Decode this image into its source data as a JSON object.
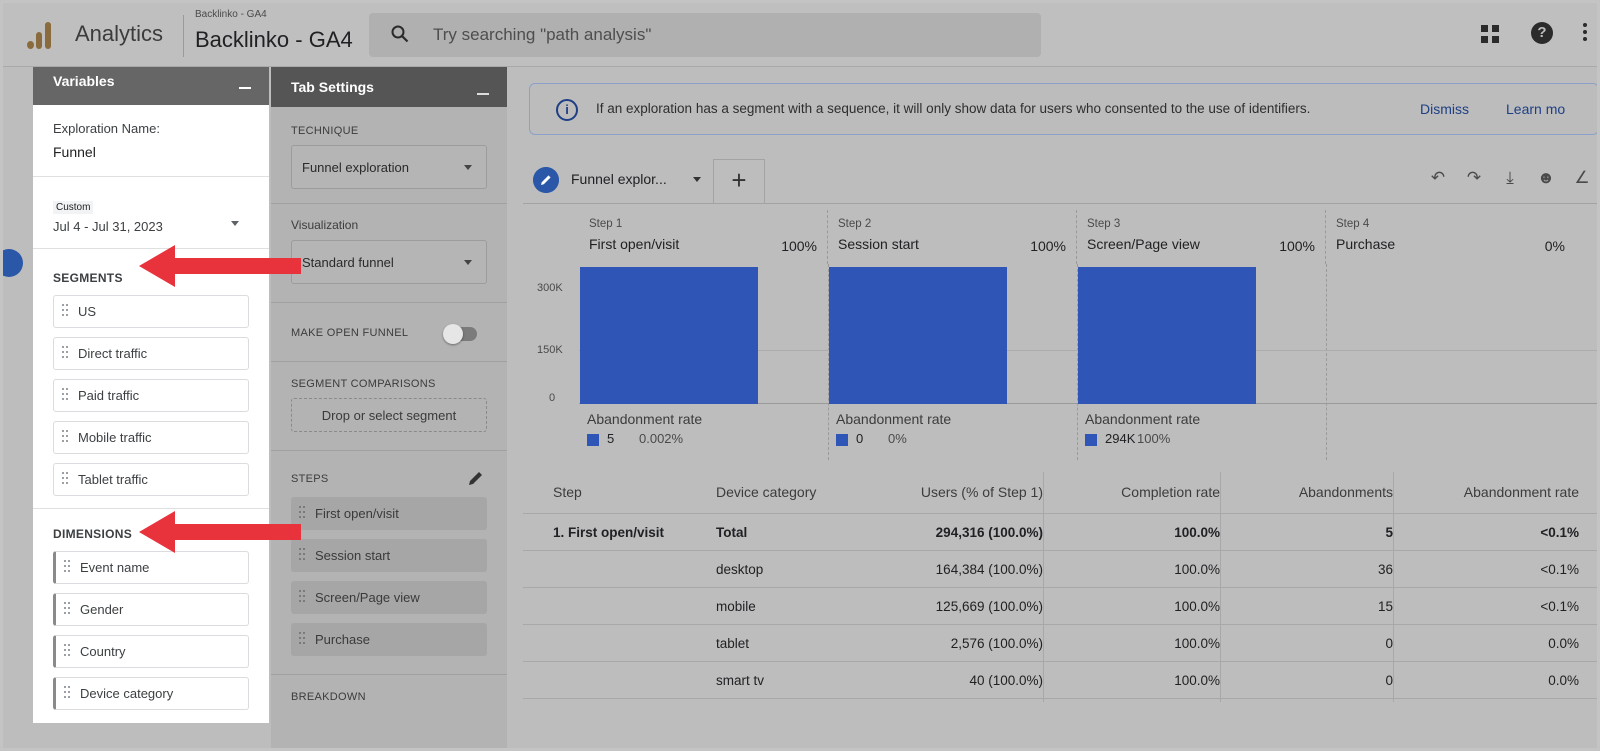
{
  "topbar": {
    "app_name": "Analytics",
    "account_small": "Backlinko - GA4",
    "account_name": "Backlinko - GA4",
    "search_placeholder": "Try searching \"path analysis\""
  },
  "variables_panel": {
    "title": "Variables",
    "exploration_label": "Exploration Name:",
    "exploration_name": "Funnel",
    "date_tag": "Custom",
    "date_range": "Jul 4 - Jul 31, 2023",
    "segments_title": "SEGMENTS",
    "segments": [
      "US",
      "Direct traffic",
      "Paid traffic",
      "Mobile traffic",
      "Tablet traffic"
    ],
    "dimensions_title": "DIMENSIONS",
    "dimensions": [
      "Event name",
      "Gender",
      "Country",
      "Device category"
    ]
  },
  "tab_settings": {
    "title": "Tab Settings",
    "technique_label": "TECHNIQUE",
    "technique_value": "Funnel exploration",
    "visualization_label": "Visualization",
    "visualization_value": "Standard funnel",
    "open_funnel_label": "MAKE OPEN FUNNEL",
    "segment_comparisons_label": "SEGMENT COMPARISONS",
    "segment_drop_text": "Drop or select segment",
    "steps_label": "STEPS",
    "steps": [
      "First open/visit",
      "Session start",
      "Screen/Page view",
      "Purchase"
    ],
    "breakdown_label": "BREAKDOWN"
  },
  "banner": {
    "message": "If an exploration has a segment with a sequence, it will only show data for users who consented to the use of identifiers.",
    "dismiss": "Dismiss",
    "learn_more": "Learn mo"
  },
  "tab": {
    "name": "Funnel explor...",
    "add": "+"
  },
  "chart_data": {
    "type": "bar",
    "categories": [
      "First open/visit",
      "Session start",
      "Screen/Page view",
      "Purchase"
    ],
    "step_labels": [
      "Step 1",
      "Step 2",
      "Step 3",
      "Step 4"
    ],
    "step_percents": [
      "100%",
      "100%",
      "100%",
      "0%"
    ],
    "values": [
      294316,
      294311,
      294311,
      0
    ],
    "yticks": [
      "300K",
      "150K",
      "0"
    ],
    "ylim": [
      0,
      300000
    ],
    "abandonment_label": "Abandonment rate",
    "abandonment": [
      {
        "count": "5",
        "rate": "0.002%"
      },
      {
        "count": "0",
        "rate": "0%"
      },
      {
        "count": "294K",
        "rate": "100%"
      }
    ],
    "colors": {
      "bar": "#2f55b7"
    }
  },
  "table": {
    "headers": [
      "Step",
      "Device category",
      "Users (% of Step 1)",
      "Completion rate",
      "Abandonments",
      "Abandonment rate"
    ],
    "rows": [
      {
        "step": "1. First open/visit",
        "device": "Total",
        "users": "294,316 (100.0%)",
        "completion": "100.0%",
        "abandonments": "5",
        "rate": "<0.1%"
      },
      {
        "step": "",
        "device": "desktop",
        "users": "164,384 (100.0%)",
        "completion": "100.0%",
        "abandonments": "36",
        "rate": "<0.1%"
      },
      {
        "step": "",
        "device": "mobile",
        "users": "125,669 (100.0%)",
        "completion": "100.0%",
        "abandonments": "15",
        "rate": "<0.1%"
      },
      {
        "step": "",
        "device": "tablet",
        "users": "2,576 (100.0%)",
        "completion": "100.0%",
        "abandonments": "0",
        "rate": "0.0%"
      },
      {
        "step": "",
        "device": "smart tv",
        "users": "40 (100.0%)",
        "completion": "100.0%",
        "abandonments": "0",
        "rate": "0.0%"
      }
    ]
  },
  "colors": {
    "annotation_arrow": "#e8323c",
    "accent": "#2a57a8"
  }
}
